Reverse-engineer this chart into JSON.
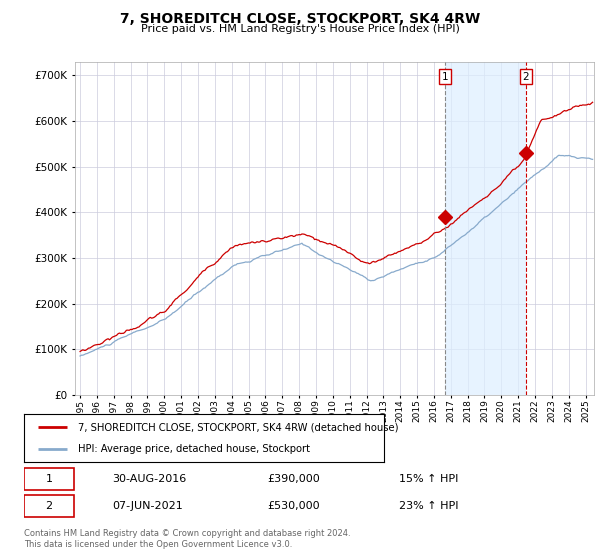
{
  "title": "7, SHOREDITCH CLOSE, STOCKPORT, SK4 4RW",
  "subtitle": "Price paid vs. HM Land Registry's House Price Index (HPI)",
  "legend_line1": "7, SHOREDITCH CLOSE, STOCKPORT, SK4 4RW (detached house)",
  "legend_line2": "HPI: Average price, detached house, Stockport",
  "annotation1": {
    "label": "1",
    "date": "30-AUG-2016",
    "price": "£390,000",
    "hpi": "15% ↑ HPI",
    "x_year": 2016.66,
    "y": 390000
  },
  "annotation2": {
    "label": "2",
    "date": "07-JUN-2021",
    "price": "£530,000",
    "hpi": "23% ↑ HPI",
    "x_year": 2021.44,
    "y": 530000
  },
  "footer": "Contains HM Land Registry data © Crown copyright and database right 2024.\nThis data is licensed under the Open Government Licence v3.0.",
  "ylim": [
    0,
    730000
  ],
  "yticks": [
    0,
    100000,
    200000,
    300000,
    400000,
    500000,
    600000,
    700000
  ],
  "xlim": [
    1994.7,
    2025.5
  ],
  "background_color": "#ffffff",
  "plot_bg_color": "#ffffff",
  "shade_color": "#ddeeff",
  "red_color": "#cc0000",
  "blue_color": "#88aacc",
  "grid_color": "#ccccdd"
}
